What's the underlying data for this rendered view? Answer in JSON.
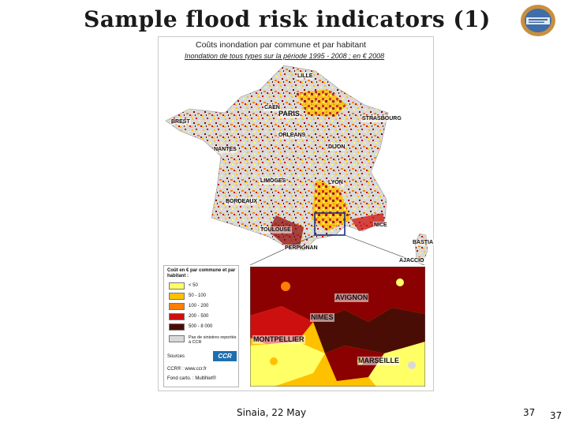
{
  "slide": {
    "title": "Sample flood risk indicators (1)",
    "footer": "Sinaia, 22 May",
    "page_number": "37",
    "page_number_dup": "37"
  },
  "map": {
    "title": "Coûts inondation par commune et par habitant",
    "subtitle": "Inondation de tous types sur la période 1995 - 2008 ; en € 2008",
    "cities": {
      "lille": "LILLE",
      "caen": "CAEN",
      "paris": "PARIS",
      "brest": "BREST",
      "strasbourg": "STRASBOURG",
      "orleans": "ORLEANS",
      "nantes": "NANTES",
      "dijon": "DIJON",
      "limoges": "LIMOGES",
      "lyon": "LYON",
      "bordeaux": "BORDEAUX",
      "nice": "NICE",
      "toulouse": "TOULOUSE",
      "bastia": "BASTIA",
      "perpignan": "PERPIGNAN",
      "ajaccio": "AJACCIO",
      "avignon": "AVIGNON",
      "nimes": "NIMES",
      "montpellier": "MONTPELLIER",
      "marseille": "MARSEILLE"
    },
    "colors": {
      "class1": "#ffff66",
      "class2": "#ffc000",
      "class3": "#ff7f00",
      "class4": "#cc1010",
      "class5": "#8b0000",
      "class6": "#4a0d05",
      "no_claims": "#d9d9d9"
    },
    "legend": {
      "title": "Coût en € par commune et par habitant :",
      "items": [
        "< 50",
        "50 - 100",
        "100 - 200",
        "200 - 500",
        "500 - 8 000",
        "Pas de sinistres reportés à CCR"
      ],
      "sources_label": "Sources",
      "ccr_logo_text": "CCR",
      "source_1": "CCR®  : www.ccr.fr",
      "source_2": "Fond carto. : MultiNet®"
    }
  }
}
